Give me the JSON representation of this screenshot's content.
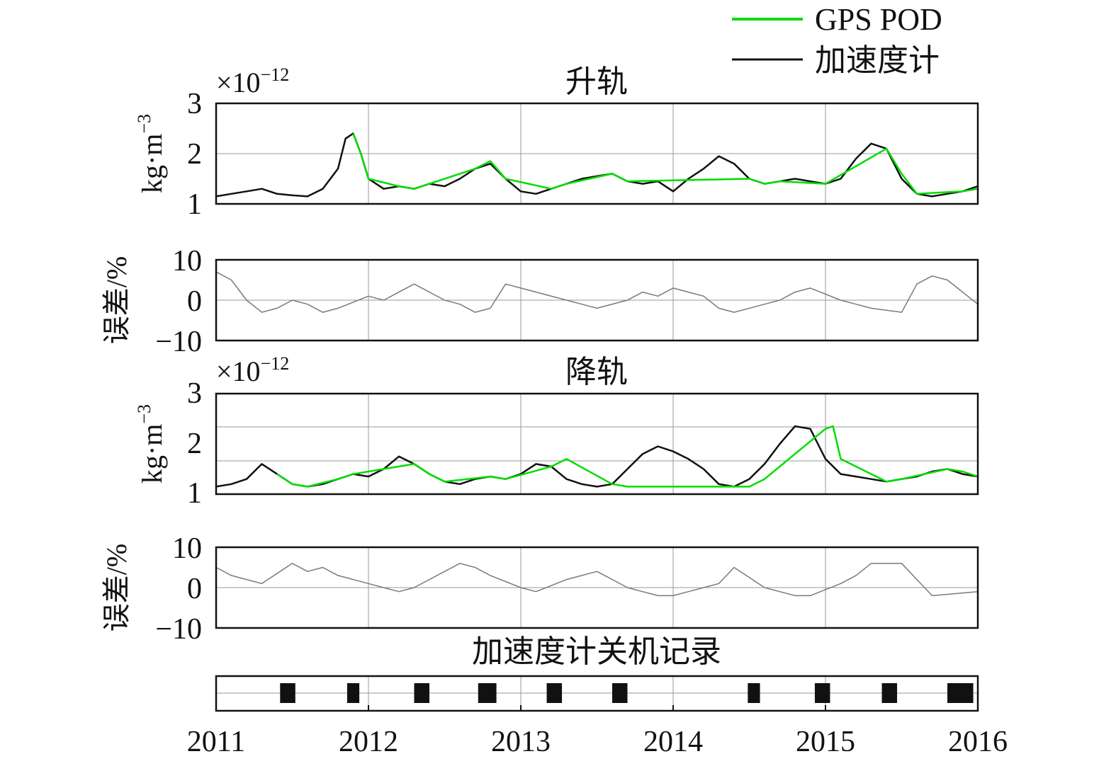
{
  "legend": {
    "gps_label": "GPS POD",
    "acc_label": "加速度计"
  },
  "colors": {
    "gps": "#00dd00",
    "acc": "#111111",
    "err": "#7a7a7a",
    "grid": "#999999",
    "block": "#111111"
  },
  "years": [
    "2011",
    "2012",
    "2013",
    "2014",
    "2015",
    "2016"
  ],
  "panels": {
    "asc": {
      "title": "升轨",
      "multiplier": "×10",
      "exponent": "−12",
      "ylabel": "kg·m",
      "ylabel_exp": "−3",
      "yticks": [
        "1",
        "2",
        "3"
      ]
    },
    "asc_err": {
      "ylabel": "误差/%",
      "yticks": [
        "10",
        "0",
        "−10"
      ]
    },
    "desc": {
      "title": "降轨",
      "multiplier": "×10",
      "exponent": "−12",
      "ylabel": "kg·m",
      "ylabel_exp": "−3",
      "yticks": [
        "1",
        "2",
        "3"
      ]
    },
    "desc_err": {
      "ylabel": "误差/%",
      "yticks": [
        "10",
        "0",
        "−10"
      ]
    },
    "off": {
      "title": "加速度计关机记录"
    }
  },
  "chart_data": [
    {
      "type": "line",
      "title": "升轨",
      "ylabel": "kg·m^-3 (×10^-12)",
      "xlim": [
        2011,
        2016
      ],
      "ylim": [
        1,
        3
      ],
      "series": [
        {
          "name": "加速度计",
          "x": [
            2011.0,
            2011.1,
            2011.2,
            2011.3,
            2011.4,
            2011.5,
            2011.6,
            2011.7,
            2011.8,
            2011.85,
            2011.9,
            2011.95,
            2012.0,
            2012.1,
            2012.2,
            2012.3,
            2012.4,
            2012.5,
            2012.6,
            2012.7,
            2012.8,
            2012.9,
            2013.0,
            2013.1,
            2013.2,
            2013.3,
            2013.4,
            2013.5,
            2013.6,
            2013.7,
            2013.8,
            2013.9,
            2014.0,
            2014.1,
            2014.2,
            2014.3,
            2014.4,
            2014.5,
            2014.6,
            2014.7,
            2014.8,
            2014.9,
            2015.0,
            2015.1,
            2015.2,
            2015.3,
            2015.4,
            2015.5,
            2015.6,
            2015.7,
            2015.8,
            2015.9,
            2016.0
          ],
          "y": [
            1.15,
            1.2,
            1.25,
            1.3,
            1.2,
            1.17,
            1.15,
            1.3,
            1.7,
            2.3,
            2.4,
            2.0,
            1.5,
            1.3,
            1.35,
            1.3,
            1.4,
            1.35,
            1.5,
            1.7,
            1.8,
            1.5,
            1.25,
            1.2,
            1.3,
            1.4,
            1.5,
            1.55,
            1.6,
            1.45,
            1.4,
            1.45,
            1.25,
            1.5,
            1.7,
            1.95,
            1.8,
            1.5,
            1.4,
            1.45,
            1.5,
            1.45,
            1.4,
            1.5,
            1.9,
            2.2,
            2.1,
            1.5,
            1.2,
            1.15,
            1.2,
            1.25,
            1.35
          ]
        },
        {
          "name": "GPS POD",
          "x": [
            2011.9,
            2011.95,
            2012.0,
            2012.2,
            2012.3,
            2012.4,
            2012.7,
            2012.8,
            2012.9,
            2013.2,
            2013.3,
            2013.6,
            2013.7,
            2014.5,
            2014.6,
            2014.7,
            2015.0,
            2015.4,
            2015.5,
            2015.6,
            2015.9,
            2016.0
          ],
          "y": [
            2.4,
            2.0,
            1.5,
            1.35,
            1.3,
            1.4,
            1.7,
            1.85,
            1.5,
            1.3,
            1.4,
            1.6,
            1.45,
            1.5,
            1.4,
            1.45,
            1.4,
            2.1,
            1.6,
            1.2,
            1.25,
            1.3
          ]
        }
      ]
    },
    {
      "type": "line",
      "title": "",
      "ylabel": "误差/%",
      "xlim": [
        2011,
        2016
      ],
      "ylim": [
        -10,
        10
      ],
      "series": [
        {
          "name": "",
          "x": [
            2011.0,
            2011.1,
            2011.2,
            2011.3,
            2011.4,
            2011.5,
            2011.6,
            2011.7,
            2011.8,
            2012.0,
            2012.1,
            2012.2,
            2012.3,
            2012.5,
            2012.6,
            2012.7,
            2012.8,
            2012.9,
            2013.0,
            2013.3,
            2013.4,
            2013.5,
            2013.7,
            2013.8,
            2013.9,
            2014.0,
            2014.1,
            2014.2,
            2014.3,
            2014.4,
            2014.6,
            2014.7,
            2014.8,
            2014.9,
            2015.1,
            2015.2,
            2015.3,
            2015.5,
            2015.6,
            2015.7,
            2015.8,
            2016.0
          ],
          "y": [
            7,
            5,
            0,
            -3,
            -2,
            0,
            -1,
            -3,
            -2,
            1,
            0,
            2,
            4,
            0,
            -1,
            -3,
            -2,
            4,
            3,
            0,
            -1,
            -2,
            0,
            2,
            1,
            3,
            2,
            1,
            -2,
            -3,
            -1,
            0,
            2,
            3,
            0,
            -1,
            -2,
            -3,
            4,
            6,
            5,
            -1
          ]
        }
      ]
    },
    {
      "type": "line",
      "title": "降轨",
      "ylabel": "kg·m^-3 (×10^-12)",
      "xlim": [
        2011,
        2016
      ],
      "ylim": [
        1,
        3
      ],
      "series": [
        {
          "name": "加速度计",
          "x": [
            2011.0,
            2011.1,
            2011.2,
            2011.3,
            2011.4,
            2011.5,
            2011.6,
            2011.7,
            2011.8,
            2011.9,
            2012.0,
            2012.1,
            2012.2,
            2012.3,
            2012.4,
            2012.5,
            2012.6,
            2012.7,
            2012.8,
            2012.9,
            2013.0,
            2013.1,
            2013.2,
            2013.3,
            2013.4,
            2013.5,
            2013.6,
            2013.7,
            2013.8,
            2013.9,
            2014.0,
            2014.1,
            2014.2,
            2014.3,
            2014.4,
            2014.5,
            2014.6,
            2014.7,
            2014.8,
            2014.9,
            2015.0,
            2015.1,
            2015.2,
            2015.3,
            2015.4,
            2015.5,
            2015.6,
            2015.7,
            2015.8,
            2015.9,
            2016.0
          ],
          "y": [
            1.15,
            1.2,
            1.3,
            1.6,
            1.4,
            1.2,
            1.15,
            1.2,
            1.3,
            1.4,
            1.35,
            1.5,
            1.75,
            1.6,
            1.4,
            1.25,
            1.2,
            1.3,
            1.35,
            1.3,
            1.4,
            1.6,
            1.55,
            1.3,
            1.2,
            1.15,
            1.2,
            1.5,
            1.8,
            1.95,
            1.85,
            1.7,
            1.5,
            1.2,
            1.15,
            1.3,
            1.6,
            2.0,
            2.35,
            2.3,
            1.7,
            1.4,
            1.35,
            1.3,
            1.25,
            1.3,
            1.35,
            1.45,
            1.5,
            1.4,
            1.35
          ]
        },
        {
          "name": "GPS POD",
          "x": [
            2011.4,
            2011.5,
            2011.6,
            2011.8,
            2011.9,
            2012.3,
            2012.4,
            2012.5,
            2012.8,
            2012.9,
            2013.2,
            2013.3,
            2013.6,
            2013.7,
            2014.5,
            2014.6,
            2015.0,
            2015.05,
            2015.1,
            2015.4,
            2015.5,
            2015.8,
            2015.9,
            2016.0
          ],
          "y": [
            1.4,
            1.2,
            1.15,
            1.3,
            1.4,
            1.6,
            1.4,
            1.25,
            1.35,
            1.3,
            1.55,
            1.7,
            1.2,
            1.15,
            1.15,
            1.3,
            2.3,
            2.35,
            1.7,
            1.25,
            1.3,
            1.5,
            1.45,
            1.35
          ]
        }
      ]
    },
    {
      "type": "line",
      "title": "",
      "ylabel": "误差/%",
      "xlim": [
        2011,
        2016
      ],
      "ylim": [
        -10,
        10
      ],
      "series": [
        {
          "name": "",
          "x": [
            2011.0,
            2011.1,
            2011.2,
            2011.3,
            2011.5,
            2011.6,
            2011.7,
            2011.8,
            2012.0,
            2012.1,
            2012.2,
            2012.3,
            2012.5,
            2012.6,
            2012.7,
            2012.8,
            2013.0,
            2013.1,
            2013.3,
            2013.4,
            2013.5,
            2013.7,
            2013.8,
            2013.9,
            2014.0,
            2014.1,
            2014.2,
            2014.3,
            2014.4,
            2014.6,
            2014.7,
            2014.8,
            2014.9,
            2015.1,
            2015.2,
            2015.3,
            2015.5,
            2015.6,
            2015.7,
            2016.0
          ],
          "y": [
            5,
            3,
            2,
            1,
            6,
            4,
            5,
            3,
            1,
            0,
            -1,
            0,
            4,
            6,
            5,
            3,
            0,
            -1,
            2,
            3,
            4,
            0,
            -1,
            -2,
            -2,
            -1,
            0,
            1,
            5,
            0,
            -1,
            -2,
            -2,
            1,
            3,
            6,
            6,
            2,
            -2,
            -1
          ]
        }
      ]
    },
    {
      "type": "bar",
      "title": "加速度计关机记录",
      "xlim": [
        2011,
        2016
      ],
      "intervals": [
        [
          2011.42,
          2011.52
        ],
        [
          2011.86,
          2011.94
        ],
        [
          2012.3,
          2012.4
        ],
        [
          2012.72,
          2012.84
        ],
        [
          2013.17,
          2013.27
        ],
        [
          2013.6,
          2013.7
        ],
        [
          2014.49,
          2014.57
        ],
        [
          2014.93,
          2015.03
        ],
        [
          2015.37,
          2015.47
        ],
        [
          2015.8,
          2015.97
        ]
      ]
    }
  ]
}
